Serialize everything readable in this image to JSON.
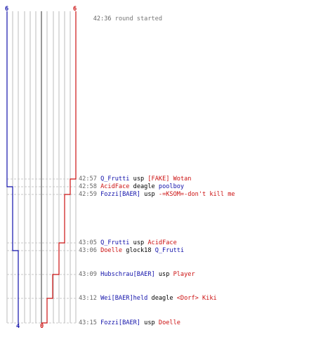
{
  "round": {
    "start_time": "42:36",
    "start_text": "round started"
  },
  "scores": {
    "blue_start": "6",
    "red_start": "6",
    "blue_end": "4",
    "red_end": "0"
  },
  "colors": {
    "blue_team": "#1111aa",
    "red_team": "#cc1111",
    "grid": "#bbbbbb",
    "grid_dark": "#555555",
    "time": "#666666"
  },
  "events": [
    {
      "time": "42:57",
      "killer": "Q_Frutti",
      "killer_team": "blue",
      "weapon": "usp",
      "victim": "[FAKE] Wotan",
      "victim_team": "red",
      "blue_after": 6,
      "red_after": 5
    },
    {
      "time": "42:58",
      "killer": "AcidFace",
      "killer_team": "red",
      "weapon": "deagle",
      "victim": "poolboy",
      "victim_team": "blue",
      "blue_after": 5,
      "red_after": 5
    },
    {
      "time": "42:59",
      "killer": "Fozzi[BAER]",
      "killer_team": "blue",
      "weapon": "usp",
      "victim": "-=KSOM=-don't kill me",
      "victim_team": "red",
      "blue_after": 5,
      "red_after": 4
    },
    {
      "time": "43:05",
      "killer": "Q_Frutti",
      "killer_team": "blue",
      "weapon": "usp",
      "victim": "AcidFace",
      "victim_team": "red",
      "blue_after": 5,
      "red_after": 3
    },
    {
      "time": "43:06",
      "killer": "Doelle",
      "killer_team": "red",
      "weapon": "glock18",
      "victim": "Q_Frutti",
      "victim_team": "blue",
      "blue_after": 4,
      "red_after": 3
    },
    {
      "time": "43:09",
      "killer": "Hubschrau[BAER]",
      "killer_team": "blue",
      "weapon": "usp",
      "victim": "Player",
      "victim_team": "red",
      "blue_after": 4,
      "red_after": 2
    },
    {
      "time": "43:12",
      "killer": "Wei[BAER]held",
      "killer_team": "blue",
      "weapon": "deagle",
      "victim": "<Dorf> Kiki",
      "victim_team": "red",
      "blue_after": 4,
      "red_after": 1
    },
    {
      "time": "43:15",
      "killer": "Fozzi[BAER]",
      "killer_team": "blue",
      "weapon": "usp",
      "victim": "Doelle",
      "victim_team": "red",
      "blue_after": 4,
      "red_after": 0
    }
  ]
}
